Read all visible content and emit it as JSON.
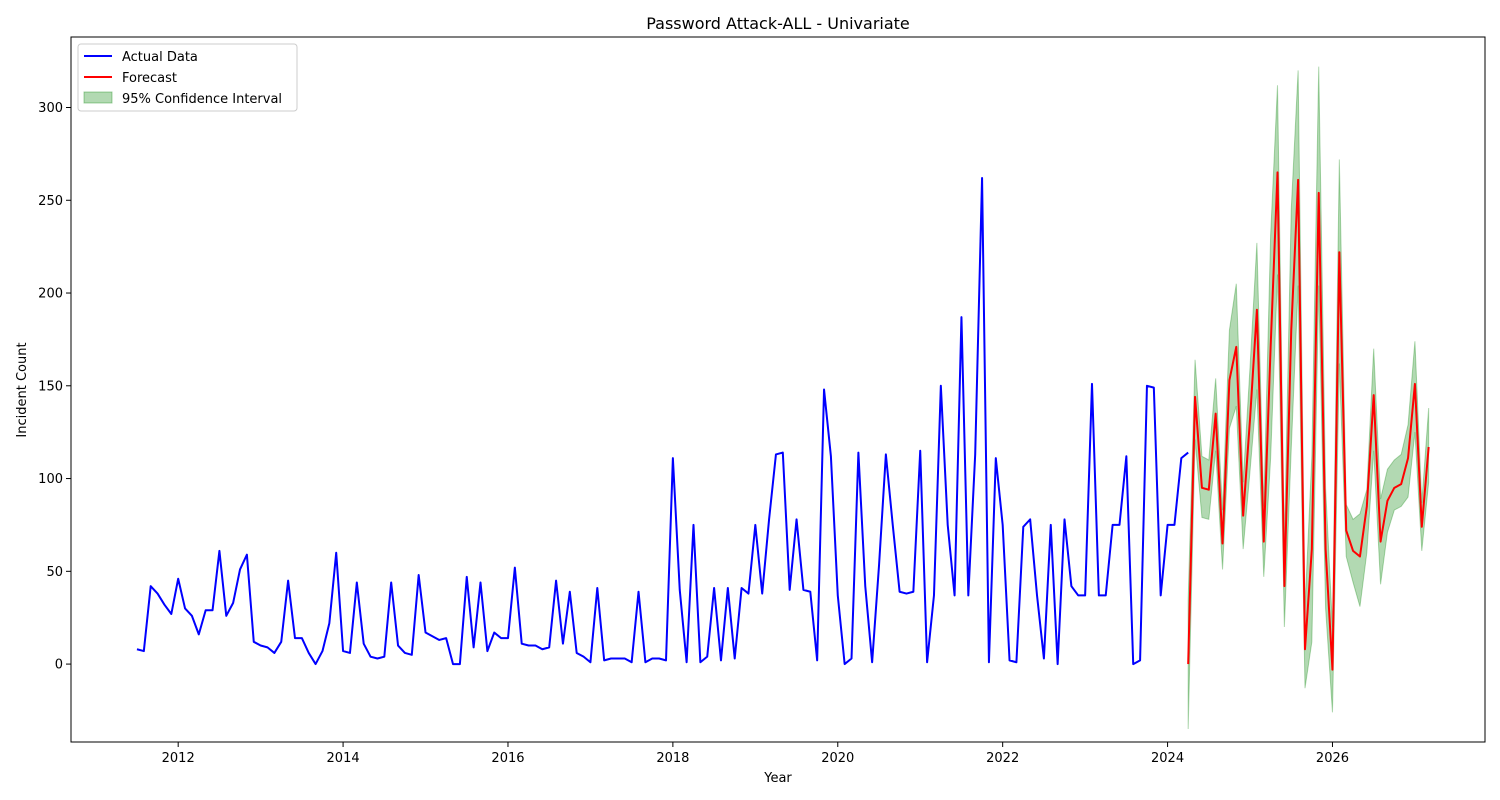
{
  "chart_data": {
    "type": "line",
    "title": "Password Attack-ALL - Univariate",
    "xlabel": "Year",
    "ylabel": "Incident Count",
    "xlim": [
      2010.7,
      2027.85
    ],
    "ylim": [
      -42,
      338
    ],
    "x_ticks": [
      2012,
      2014,
      2016,
      2018,
      2020,
      2022,
      2024,
      2026
    ],
    "y_ticks": [
      0,
      50,
      100,
      150,
      200,
      250,
      300
    ],
    "grid": false,
    "legend_position": "top-left",
    "legend": [
      "Actual Data",
      "Forecast",
      "95% Confidence Interval"
    ],
    "colors": {
      "actual": "#0000ff",
      "forecast": "#ff0000",
      "ci_fill": "#008000"
    },
    "actual": {
      "name": "Actual Data",
      "start": "2011-07",
      "frequency": "monthly",
      "values": [
        8,
        7,
        42,
        38,
        32,
        27,
        46,
        30,
        26,
        16,
        29,
        29,
        61,
        26,
        33,
        51,
        59,
        12,
        10,
        9,
        6,
        12,
        45,
        14,
        14,
        6,
        0,
        7,
        22,
        60,
        7,
        6,
        44,
        11,
        4,
        3,
        4,
        44,
        10,
        6,
        5,
        48,
        17,
        15,
        13,
        14,
        0,
        0,
        47,
        9,
        44,
        7,
        17,
        14,
        14,
        52,
        11,
        10,
        10,
        8,
        9,
        45,
        11,
        39,
        6,
        4,
        1,
        41,
        2,
        3,
        3,
        3,
        1,
        39,
        1,
        3,
        3,
        2,
        111,
        40,
        1,
        75,
        1,
        4,
        41,
        2,
        41,
        3,
        41,
        38,
        75,
        38,
        78,
        113,
        114,
        40,
        78,
        40,
        39,
        2,
        148,
        112,
        37,
        0,
        3,
        114,
        42,
        1,
        53,
        113,
        75,
        39,
        38,
        39,
        115,
        1,
        37,
        150,
        75,
        37,
        187,
        37,
        113,
        262,
        1,
        111,
        75,
        2,
        1,
        74,
        78,
        37,
        3,
        75,
        0,
        78,
        42,
        37,
        37,
        151,
        37,
        37,
        75,
        75,
        112,
        0,
        2,
        150,
        149,
        37,
        75,
        75,
        111,
        114
      ]
    },
    "forecast": {
      "name": "Forecast",
      "start": "2024-04",
      "frequency": "monthly",
      "values": [
        0,
        144,
        95,
        94,
        135,
        65,
        153,
        171,
        80,
        132,
        191,
        66,
        171,
        265,
        42,
        180,
        261,
        8,
        62,
        254,
        62,
        -3,
        222,
        72,
        61,
        58,
        85,
        145,
        66,
        88,
        95,
        97,
        111,
        151,
        74,
        117
      ],
      "ci_lower": [
        -35,
        121,
        79,
        78,
        115,
        51,
        127,
        139,
        62,
        104,
        148,
        47,
        111,
        210,
        20,
        116,
        204,
        -13,
        12,
        204,
        30,
        -26,
        162,
        58,
        44,
        31,
        60,
        115,
        43,
        71,
        83,
        85,
        90,
        125,
        61,
        98
      ],
      "ci_upper": [
        35,
        164,
        112,
        110,
        154,
        83,
        180,
        205,
        98,
        160,
        227,
        85,
        231,
        312,
        65,
        245,
        320,
        30,
        112,
        322,
        95,
        20,
        272,
        86,
        78,
        81,
        94,
        170,
        89,
        105,
        110,
        113,
        129,
        174,
        87,
        138
      ]
    }
  }
}
